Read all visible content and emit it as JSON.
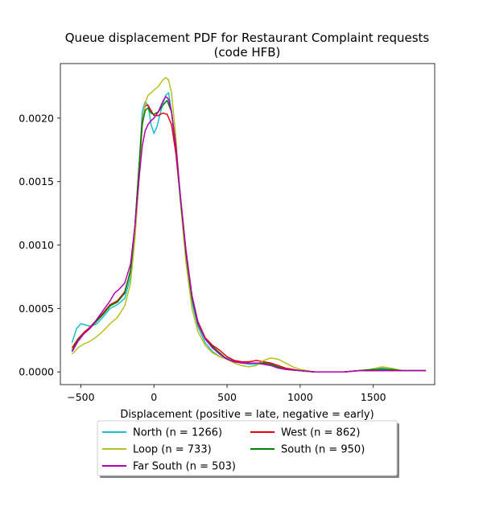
{
  "chart_data": {
    "type": "line",
    "title": [
      "Queue displacement PDF for Restaurant Complaint  requests",
      "(code HFB)"
    ],
    "xlabel": "Displacement (positive = late, negative = early)",
    "ylabel": "",
    "xlim": [
      -640,
      1920
    ],
    "ylim": [
      -0.0001,
      0.00243
    ],
    "xticks": [
      -500,
      0,
      500,
      1000,
      1500
    ],
    "xtick_labels": [
      "−500",
      "0",
      "500",
      "1000",
      "1500"
    ],
    "yticks": [
      0,
      0.0005,
      0.001,
      0.0015,
      0.002
    ],
    "ytick_labels": [
      "0.0000",
      "0.0005",
      "0.0010",
      "0.0015",
      "0.0020"
    ],
    "grid": false,
    "legend_position": "below-center",
    "legend_columns": 2,
    "series": [
      {
        "name": "North (n = 1266)",
        "color": "#17becf",
        "points": [
          [
            -560,
            0.00023
          ],
          [
            -530,
            0.00034
          ],
          [
            -500,
            0.00038
          ],
          [
            -470,
            0.00037
          ],
          [
            -430,
            0.00036
          ],
          [
            -390,
            0.00038
          ],
          [
            -350,
            0.00043
          ],
          [
            -300,
            0.0005
          ],
          [
            -250,
            0.00053
          ],
          [
            -200,
            0.00058
          ],
          [
            -160,
            0.00075
          ],
          [
            -130,
            0.00115
          ],
          [
            -100,
            0.00165
          ],
          [
            -80,
            0.00205
          ],
          [
            -60,
            0.00213
          ],
          [
            -40,
            0.0021
          ],
          [
            -20,
            0.00195
          ],
          [
            0,
            0.00188
          ],
          [
            20,
            0.00193
          ],
          [
            50,
            0.00207
          ],
          [
            80,
            0.00218
          ],
          [
            100,
            0.0022
          ],
          [
            120,
            0.00205
          ],
          [
            150,
            0.00175
          ],
          [
            180,
            0.00135
          ],
          [
            220,
            0.0009
          ],
          [
            260,
            0.00055
          ],
          [
            300,
            0.00036
          ],
          [
            350,
            0.00023
          ],
          [
            400,
            0.00016
          ],
          [
            450,
            0.00012
          ],
          [
            500,
            0.00011
          ],
          [
            550,
            9e-05
          ],
          [
            600,
            7e-05
          ],
          [
            650,
            6e-05
          ],
          [
            700,
            6e-05
          ],
          [
            750,
            7e-05
          ],
          [
            800,
            6e-05
          ],
          [
            850,
            4e-05
          ],
          [
            900,
            2e-05
          ],
          [
            1000,
            1e-05
          ],
          [
            1100,
            0
          ],
          [
            1200,
            0
          ],
          [
            1300,
            0
          ],
          [
            1400,
            1e-05
          ],
          [
            1500,
            2e-05
          ],
          [
            1560,
            3e-05
          ],
          [
            1620,
            2e-05
          ],
          [
            1700,
            1e-05
          ],
          [
            1800,
            1e-05
          ],
          [
            1860,
            1e-05
          ]
        ]
      },
      {
        "name": "West (n = 862)",
        "color": "#e8000b",
        "points": [
          [
            -560,
            0.00019
          ],
          [
            -520,
            0.00026
          ],
          [
            -480,
            0.00031
          ],
          [
            -440,
            0.00035
          ],
          [
            -400,
            0.0004
          ],
          [
            -350,
            0.00046
          ],
          [
            -300,
            0.00053
          ],
          [
            -250,
            0.00056
          ],
          [
            -200,
            0.00063
          ],
          [
            -160,
            0.0008
          ],
          [
            -130,
            0.00115
          ],
          [
            -100,
            0.00165
          ],
          [
            -80,
            0.00198
          ],
          [
            -60,
            0.0021
          ],
          [
            -40,
            0.0021
          ],
          [
            -20,
            0.00206
          ],
          [
            0,
            0.00202
          ],
          [
            30,
            0.00202
          ],
          [
            60,
            0.00204
          ],
          [
            90,
            0.00203
          ],
          [
            120,
            0.00195
          ],
          [
            150,
            0.00172
          ],
          [
            180,
            0.00138
          ],
          [
            220,
            0.00095
          ],
          [
            260,
            0.0006
          ],
          [
            300,
            0.0004
          ],
          [
            350,
            0.00027
          ],
          [
            400,
            0.00021
          ],
          [
            450,
            0.00017
          ],
          [
            500,
            0.00012
          ],
          [
            550,
            9e-05
          ],
          [
            600,
            8e-05
          ],
          [
            650,
            8e-05
          ],
          [
            700,
            9e-05
          ],
          [
            750,
            8e-05
          ],
          [
            800,
            7e-05
          ],
          [
            850,
            5e-05
          ],
          [
            900,
            3e-05
          ],
          [
            1000,
            1e-05
          ],
          [
            1100,
            0
          ],
          [
            1300,
            0
          ],
          [
            1400,
            1e-05
          ],
          [
            1500,
            1e-05
          ],
          [
            1600,
            1e-05
          ],
          [
            1700,
            1e-05
          ],
          [
            1860,
            1e-05
          ]
        ]
      },
      {
        "name": "Loop (n = 733)",
        "color": "#bcbd22",
        "points": [
          [
            -560,
            0.00014
          ],
          [
            -520,
            0.00019
          ],
          [
            -480,
            0.00022
          ],
          [
            -440,
            0.00024
          ],
          [
            -400,
            0.00027
          ],
          [
            -350,
            0.00032
          ],
          [
            -300,
            0.00038
          ],
          [
            -250,
            0.00043
          ],
          [
            -200,
            0.00052
          ],
          [
            -160,
            0.0007
          ],
          [
            -130,
            0.00105
          ],
          [
            -100,
            0.00155
          ],
          [
            -80,
            0.00195
          ],
          [
            -60,
            0.00212
          ],
          [
            -40,
            0.00218
          ],
          [
            -20,
            0.0022
          ],
          [
            0,
            0.00222
          ],
          [
            30,
            0.00225
          ],
          [
            60,
            0.0023
          ],
          [
            80,
            0.00232
          ],
          [
            100,
            0.0023
          ],
          [
            120,
            0.0022
          ],
          [
            150,
            0.00185
          ],
          [
            180,
            0.00135
          ],
          [
            220,
            0.00085
          ],
          [
            260,
            0.0005
          ],
          [
            300,
            0.00032
          ],
          [
            350,
            0.00021
          ],
          [
            400,
            0.00015
          ],
          [
            450,
            0.00012
          ],
          [
            500,
            0.0001
          ],
          [
            550,
            7e-05
          ],
          [
            600,
            5e-05
          ],
          [
            650,
            4e-05
          ],
          [
            700,
            5e-05
          ],
          [
            750,
            9e-05
          ],
          [
            800,
            0.00011
          ],
          [
            850,
            0.0001
          ],
          [
            900,
            7e-05
          ],
          [
            950,
            4e-05
          ],
          [
            1000,
            2e-05
          ],
          [
            1100,
            0
          ],
          [
            1300,
            0
          ],
          [
            1400,
            1e-05
          ],
          [
            1480,
            2e-05
          ],
          [
            1560,
            4e-05
          ],
          [
            1620,
            3e-05
          ],
          [
            1700,
            1e-05
          ],
          [
            1800,
            1e-05
          ],
          [
            1860,
            1e-05
          ]
        ]
      },
      {
        "name": "South (n = 950)",
        "color": "#008000",
        "points": [
          [
            -560,
            0.00017
          ],
          [
            -520,
            0.00025
          ],
          [
            -480,
            0.0003
          ],
          [
            -440,
            0.00034
          ],
          [
            -400,
            0.00039
          ],
          [
            -350,
            0.00045
          ],
          [
            -300,
            0.00052
          ],
          [
            -250,
            0.00055
          ],
          [
            -200,
            0.00062
          ],
          [
            -160,
            0.0008
          ],
          [
            -130,
            0.00115
          ],
          [
            -100,
            0.00165
          ],
          [
            -80,
            0.00195
          ],
          [
            -60,
            0.00206
          ],
          [
            -40,
            0.00208
          ],
          [
            -20,
            0.00204
          ],
          [
            0,
            0.00203
          ],
          [
            30,
            0.00205
          ],
          [
            60,
            0.0021
          ],
          [
            90,
            0.00214
          ],
          [
            120,
            0.00205
          ],
          [
            150,
            0.00178
          ],
          [
            180,
            0.00138
          ],
          [
            220,
            0.00092
          ],
          [
            260,
            0.00058
          ],
          [
            300,
            0.00038
          ],
          [
            350,
            0.00026
          ],
          [
            400,
            0.0002
          ],
          [
            450,
            0.00015
          ],
          [
            500,
            0.0001
          ],
          [
            550,
            8e-05
          ],
          [
            600,
            7e-05
          ],
          [
            650,
            7e-05
          ],
          [
            700,
            7e-05
          ],
          [
            750,
            7e-05
          ],
          [
            800,
            6e-05
          ],
          [
            850,
            4e-05
          ],
          [
            900,
            2e-05
          ],
          [
            1000,
            1e-05
          ],
          [
            1100,
            0
          ],
          [
            1300,
            0
          ],
          [
            1400,
            1e-05
          ],
          [
            1500,
            2e-05
          ],
          [
            1560,
            2e-05
          ],
          [
            1620,
            2e-05
          ],
          [
            1700,
            1e-05
          ],
          [
            1860,
            1e-05
          ]
        ]
      },
      {
        "name": "Far South (n = 503)",
        "color": "#b100b1",
        "points": [
          [
            -560,
            0.00016
          ],
          [
            -520,
            0.00024
          ],
          [
            -480,
            0.0003
          ],
          [
            -440,
            0.00034
          ],
          [
            -400,
            0.0004
          ],
          [
            -350,
            0.00048
          ],
          [
            -300,
            0.00056
          ],
          [
            -270,
            0.00062
          ],
          [
            -240,
            0.00065
          ],
          [
            -200,
            0.0007
          ],
          [
            -160,
            0.00085
          ],
          [
            -130,
            0.00115
          ],
          [
            -100,
            0.00155
          ],
          [
            -80,
            0.00178
          ],
          [
            -60,
            0.0019
          ],
          [
            -40,
            0.00195
          ],
          [
            -20,
            0.00198
          ],
          [
            0,
            0.002
          ],
          [
            30,
            0.00205
          ],
          [
            60,
            0.00213
          ],
          [
            80,
            0.00217
          ],
          [
            100,
            0.00215
          ],
          [
            120,
            0.00205
          ],
          [
            150,
            0.00178
          ],
          [
            180,
            0.0014
          ],
          [
            220,
            0.00094
          ],
          [
            260,
            0.0006
          ],
          [
            300,
            0.00039
          ],
          [
            350,
            0.00026
          ],
          [
            400,
            0.00019
          ],
          [
            450,
            0.00014
          ],
          [
            500,
            0.0001
          ],
          [
            550,
            8e-05
          ],
          [
            600,
            7e-05
          ],
          [
            650,
            7e-05
          ],
          [
            700,
            7e-05
          ],
          [
            750,
            6e-05
          ],
          [
            800,
            5e-05
          ],
          [
            850,
            3e-05
          ],
          [
            900,
            2e-05
          ],
          [
            1000,
            1e-05
          ],
          [
            1100,
            0
          ],
          [
            1300,
            0
          ],
          [
            1400,
            1e-05
          ],
          [
            1500,
            1e-05
          ],
          [
            1600,
            1e-05
          ],
          [
            1700,
            1e-05
          ],
          [
            1860,
            1e-05
          ]
        ]
      }
    ]
  }
}
